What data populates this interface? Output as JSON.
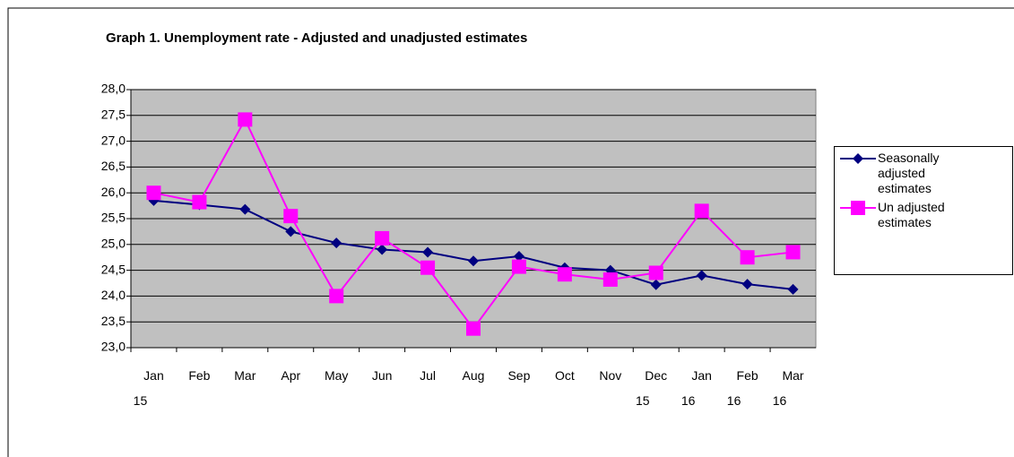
{
  "chart_data": {
    "type": "line",
    "title": "Graph 1. Unemployment rate - Adjusted and unadjusted estimates",
    "categories": [
      "Jan 15",
      "Feb",
      "Mar",
      "Apr",
      "May",
      "Jun",
      "Jul",
      "Aug",
      "Sep",
      "Oct",
      "Nov",
      "Dec 15",
      "Jan 16",
      "Feb 16",
      "Mar 16"
    ],
    "series": [
      {
        "name": "Seasonally adjusted estimates",
        "color": "#000080",
        "marker": "diamond",
        "values": [
          25.85,
          25.77,
          25.68,
          25.25,
          25.03,
          24.9,
          24.85,
          24.68,
          24.77,
          24.55,
          24.5,
          24.22,
          24.4,
          24.23,
          24.13
        ]
      },
      {
        "name": "Un adjusted estimates",
        "color": "#ff00ff",
        "marker": "square",
        "values": [
          26.0,
          25.82,
          27.42,
          25.55,
          24.0,
          25.12,
          24.55,
          23.37,
          24.57,
          24.42,
          24.32,
          24.45,
          25.65,
          24.75,
          24.85
        ]
      }
    ],
    "ylim": [
      23,
      28
    ],
    "yticks": [
      {
        "value": 23,
        "label": "23,0"
      },
      {
        "value": 23.5,
        "label": "23,5"
      },
      {
        "value": 24,
        "label": "24,0"
      },
      {
        "value": 24.5,
        "label": "24,5"
      },
      {
        "value": 25,
        "label": "25,0"
      },
      {
        "value": 25.5,
        "label": "25,5"
      },
      {
        "value": 26,
        "label": "26,0"
      },
      {
        "value": 26.5,
        "label": "26,5"
      },
      {
        "value": 27,
        "label": "27,0"
      },
      {
        "value": 27.5,
        "label": "27,5"
      },
      {
        "value": 28,
        "label": "28,0"
      }
    ],
    "grid": true,
    "plot_background": "#c0c0c0",
    "legend": "right"
  }
}
